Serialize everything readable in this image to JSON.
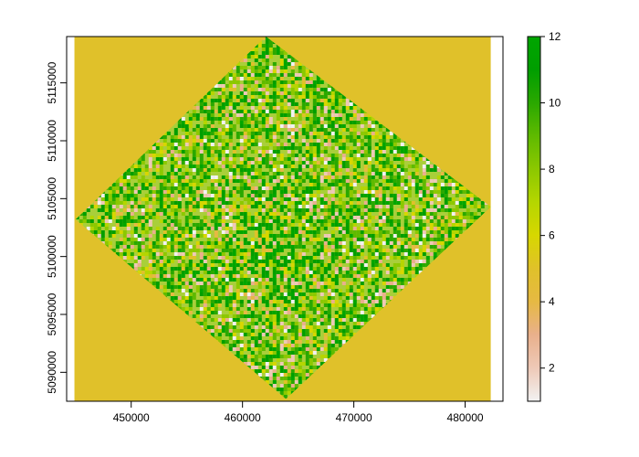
{
  "map": {
    "x_ticks": [
      450000,
      460000,
      470000,
      480000
    ],
    "y_ticks": [
      5090000,
      5095000,
      5100000,
      5105000,
      5110000,
      5115000
    ],
    "xlim": [
      444200,
      483400
    ],
    "ylim": [
      5087500,
      5119000
    ],
    "raster_extent": {
      "xmin": 444900,
      "xmax": 482300,
      "ymin": 5087500,
      "ymax": 5119000
    },
    "footprint_corners": [
      [
        462100,
        5119000
      ],
      [
        482300,
        5104300
      ],
      [
        463900,
        5087700
      ],
      [
        445000,
        5103200
      ]
    ],
    "background_value": 5,
    "hotspot_center": [
      461800,
      5101000
    ],
    "colors": {
      "background": "#e6b943",
      "frame": "#000000"
    }
  },
  "legend": {
    "ticks": [
      2,
      4,
      6,
      8,
      10,
      12
    ],
    "range": [
      1,
      12
    ],
    "colors": [
      "#f2f2f2",
      "#eec9b7",
      "#e9b08c",
      "#e6b943",
      "#e0c12a",
      "#d7d700",
      "#b5d600",
      "#8cc800",
      "#5fba00",
      "#2aa800",
      "#009e00",
      "#00a600"
    ]
  }
}
